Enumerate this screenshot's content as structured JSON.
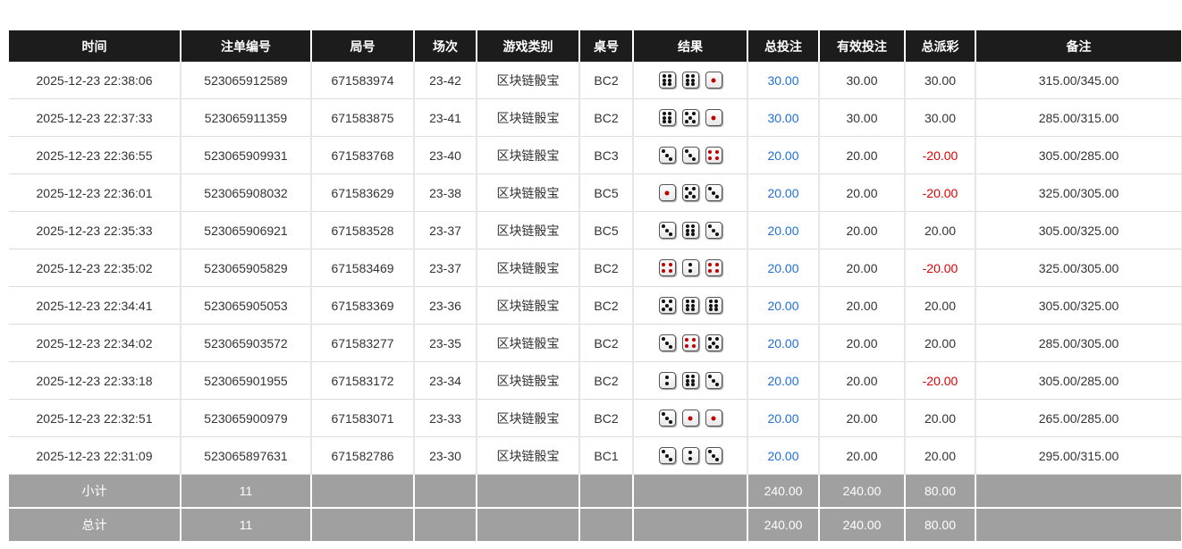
{
  "headers": [
    "时间",
    "注单编号",
    "局号",
    "场次",
    "游戏类别",
    "桌号",
    "结果",
    "总投注",
    "有效投注",
    "总派彩",
    "备注"
  ],
  "colors": {
    "header_bg": "#1c1c1c",
    "bet_blue": "#1f6fd6",
    "loss_red": "#e00000",
    "summary_bg": "#a0a0a0"
  },
  "rows": [
    {
      "time": "2025-12-23 22:38:06",
      "bet_id": "523065912589",
      "round": "671583974",
      "session": "23-42",
      "game": "区块链骰宝",
      "table": "BC2",
      "dice": [
        6,
        6,
        1
      ],
      "total": "30.00",
      "valid": "30.00",
      "payout": "30.00",
      "loss": false,
      "note": "315.00/345.00"
    },
    {
      "time": "2025-12-23 22:37:33",
      "bet_id": "523065911359",
      "round": "671583875",
      "session": "23-41",
      "game": "区块链骰宝",
      "table": "BC2",
      "dice": [
        6,
        5,
        1
      ],
      "total": "30.00",
      "valid": "30.00",
      "payout": "30.00",
      "loss": false,
      "note": "285.00/315.00"
    },
    {
      "time": "2025-12-23 22:36:55",
      "bet_id": "523065909931",
      "round": "671583768",
      "session": "23-40",
      "game": "区块链骰宝",
      "table": "BC3",
      "dice": [
        3,
        3,
        4
      ],
      "total": "20.00",
      "valid": "20.00",
      "payout": "-20.00",
      "loss": true,
      "note": "305.00/285.00"
    },
    {
      "time": "2025-12-23 22:36:01",
      "bet_id": "523065908032",
      "round": "671583629",
      "session": "23-38",
      "game": "区块链骰宝",
      "table": "BC5",
      "dice": [
        1,
        5,
        3
      ],
      "total": "20.00",
      "valid": "20.00",
      "payout": "-20.00",
      "loss": true,
      "note": "325.00/305.00"
    },
    {
      "time": "2025-12-23 22:35:33",
      "bet_id": "523065906921",
      "round": "671583528",
      "session": "23-37",
      "game": "区块链骰宝",
      "table": "BC5",
      "dice": [
        3,
        6,
        3
      ],
      "total": "20.00",
      "valid": "20.00",
      "payout": "20.00",
      "loss": false,
      "note": "305.00/325.00"
    },
    {
      "time": "2025-12-23 22:35:02",
      "bet_id": "523065905829",
      "round": "671583469",
      "session": "23-37",
      "game": "区块链骰宝",
      "table": "BC2",
      "dice": [
        4,
        2,
        4
      ],
      "total": "20.00",
      "valid": "20.00",
      "payout": "-20.00",
      "loss": true,
      "note": "325.00/305.00"
    },
    {
      "time": "2025-12-23 22:34:41",
      "bet_id": "523065905053",
      "round": "671583369",
      "session": "23-36",
      "game": "区块链骰宝",
      "table": "BC2",
      "dice": [
        5,
        6,
        6
      ],
      "total": "20.00",
      "valid": "20.00",
      "payout": "20.00",
      "loss": false,
      "note": "305.00/325.00"
    },
    {
      "time": "2025-12-23 22:34:02",
      "bet_id": "523065903572",
      "round": "671583277",
      "session": "23-35",
      "game": "区块链骰宝",
      "table": "BC2",
      "dice": [
        3,
        4,
        5
      ],
      "total": "20.00",
      "valid": "20.00",
      "payout": "20.00",
      "loss": false,
      "note": "285.00/305.00"
    },
    {
      "time": "2025-12-23 22:33:18",
      "bet_id": "523065901955",
      "round": "671583172",
      "session": "23-34",
      "game": "区块链骰宝",
      "table": "BC2",
      "dice": [
        2,
        6,
        3
      ],
      "total": "20.00",
      "valid": "20.00",
      "payout": "-20.00",
      "loss": true,
      "note": "305.00/285.00"
    },
    {
      "time": "2025-12-23 22:32:51",
      "bet_id": "523065900979",
      "round": "671583071",
      "session": "23-33",
      "game": "区块链骰宝",
      "table": "BC2",
      "dice": [
        3,
        1,
        1
      ],
      "total": "20.00",
      "valid": "20.00",
      "payout": "20.00",
      "loss": false,
      "note": "265.00/285.00"
    },
    {
      "time": "2025-12-23 22:31:09",
      "bet_id": "523065897631",
      "round": "671582786",
      "session": "23-30",
      "game": "区块链骰宝",
      "table": "BC1",
      "dice": [
        3,
        2,
        3
      ],
      "total": "20.00",
      "valid": "20.00",
      "payout": "20.00",
      "loss": false,
      "note": "295.00/315.00"
    }
  ],
  "subtotal": {
    "label": "小计",
    "count": "11",
    "total": "240.00",
    "valid": "240.00",
    "payout": "80.00"
  },
  "grand_total": {
    "label": "总计",
    "count": "11",
    "total": "240.00",
    "valid": "240.00",
    "payout": "80.00"
  }
}
